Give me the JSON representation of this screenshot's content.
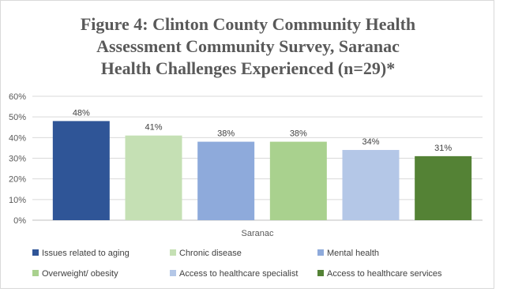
{
  "chart_data": {
    "type": "bar",
    "title_lines": [
      "Figure 4: Clinton County Community Health",
      "Assessment Community Survey, Saranac",
      "Health Challenges Experienced (n=29)*"
    ],
    "xlabel": "Saranac",
    "ylabel": "",
    "ylim": [
      0,
      0.6
    ],
    "yticks": [
      "0%",
      "10%",
      "20%",
      "30%",
      "40%",
      "50%",
      "60%"
    ],
    "grid": true,
    "legend_position": "bottom",
    "series": [
      {
        "name": "Issues related to aging",
        "value": 0.48,
        "label": "48%",
        "color": "#2f5597"
      },
      {
        "name": "Chronic disease",
        "value": 0.41,
        "label": "41%",
        "color": "#c5e0b4"
      },
      {
        "name": "Mental health",
        "value": 0.38,
        "label": "38%",
        "color": "#8eaadb"
      },
      {
        "name": "Overweight/ obesity",
        "value": 0.38,
        "label": "38%",
        "color": "#a9d18e"
      },
      {
        "name": "Access to healthcare specialist",
        "value": 0.34,
        "label": "34%",
        "color": "#b4c7e7"
      },
      {
        "name": "Access to healthcare services",
        "value": 0.31,
        "label": "31%",
        "color": "#548235"
      }
    ]
  }
}
